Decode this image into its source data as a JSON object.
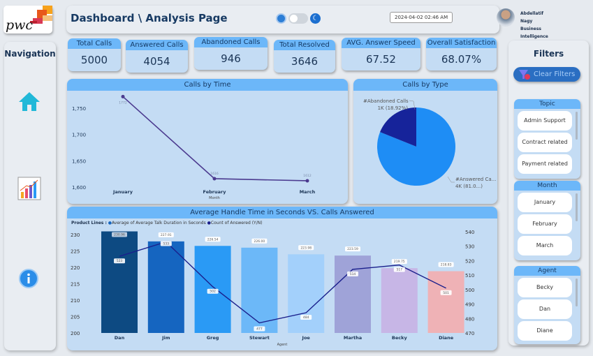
{
  "logo": {
    "text": "pwc"
  },
  "header": {
    "title": "Dashboard \\ Analysis Page",
    "datetime": "2024-04-02 02:46 AM",
    "user_name": "Abdellatif Nagy",
    "user_role": "Business Intelligence Analyst",
    "theme_toggle": "light"
  },
  "nav": {
    "title": "Navigation",
    "items": [
      {
        "icon": "home-icon"
      },
      {
        "icon": "bar-chart-icon"
      },
      {
        "icon": "info-icon"
      }
    ]
  },
  "kpis": [
    {
      "label": "Total Calls",
      "value": "5000"
    },
    {
      "label": "Answered Calls",
      "value": "4054"
    },
    {
      "label": "Abandoned Calls",
      "value": "946"
    },
    {
      "label": "Total Resolved",
      "value": "3646"
    },
    {
      "label": "AVG. Answer Speed",
      "value": "67.52"
    },
    {
      "label": "Overall Satisfaction",
      "value": "68.07%"
    }
  ],
  "filters": {
    "title": "Filters",
    "clear_label": "Clear Filters",
    "slicers": [
      {
        "title": "Topic",
        "items": [
          "Admin Support",
          "Contract related",
          "Payment related"
        ]
      },
      {
        "title": "Month",
        "items": [
          "January",
          "February",
          "March"
        ]
      },
      {
        "title": "Agent",
        "items": [
          "Becky",
          "Dan",
          "Diane"
        ]
      }
    ]
  },
  "chart_data": [
    {
      "type": "line",
      "title": "Calls by Time",
      "xlabel": "Month",
      "categories": [
        "January",
        "February",
        "March"
      ],
      "values": [
        1772,
        1616,
        1612
      ],
      "data_labels": [
        "1772",
        "1616",
        "1612"
      ],
      "yticks": [
        "1,600",
        "1,650",
        "1,700",
        "1,750"
      ],
      "ylim": [
        1600,
        1775
      ],
      "color": "#4b3a8f"
    },
    {
      "type": "pie",
      "title": "Calls by Type",
      "slices": [
        {
          "name": "#Abandoned Calls",
          "label": "1K (18.92%)",
          "value": 18.92,
          "color": "#16239a"
        },
        {
          "name": "#Answered Ca...",
          "label": "4K (81.0...)",
          "value": 81.08,
          "color": "#1e8df5"
        }
      ]
    },
    {
      "type": "bar",
      "title": "Average Handle Time in Seconds VS. Calls Answered",
      "xlabel": "Agent",
      "legend_title": "Product Lines :",
      "categories": [
        "Dan",
        "Jim",
        "Greg",
        "Stewart",
        "Joe",
        "Martha",
        "Becky",
        "Diane"
      ],
      "series": [
        {
          "name": "Average of Average Talk Duration in Seconds",
          "type": "bar",
          "values": [
            230.96,
            227.91,
            226.54,
            226.0,
            223.98,
            223.59,
            219.75,
            218.83
          ],
          "labels": [
            "230.96",
            "227.91",
            "226.54",
            "226.00",
            "223.98",
            "223.59",
            "219.75",
            "218.83"
          ],
          "colors": [
            "#0d4a82",
            "#1565c0",
            "#2a9af5",
            "#6cb8f8",
            "#a3d0fb",
            "#9fa3d8",
            "#c7b6e6",
            "#efb2b6"
          ]
        },
        {
          "name": "Count of Answered (Y/N)",
          "type": "line",
          "axis": "right",
          "values": [
            523,
            533,
            502,
            477,
            484,
            514,
            517,
            501
          ],
          "labels": [
            "523",
            "533",
            "502",
            "477",
            "484",
            "514",
            "517",
            "501"
          ],
          "color": "#1a1f8c"
        }
      ],
      "yticks_left": [
        "200",
        "205",
        "210",
        "215",
        "220",
        "225",
        "230"
      ],
      "ylim_left": [
        200,
        230
      ],
      "yticks_right": [
        "470",
        "480",
        "490",
        "500",
        "510",
        "520",
        "530",
        "540"
      ],
      "ylim_right": [
        470,
        540
      ]
    }
  ]
}
